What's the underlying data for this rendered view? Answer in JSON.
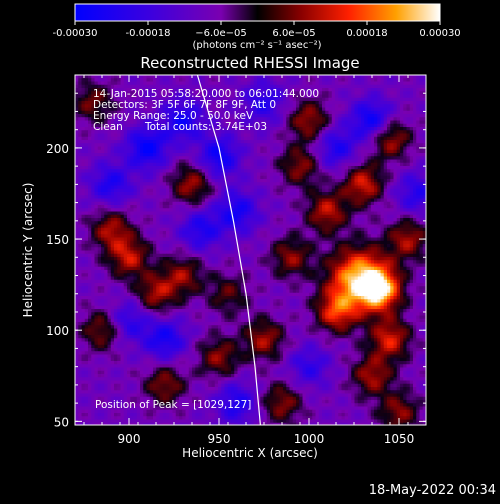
{
  "chart_data": {
    "type": "heatmap",
    "title": "Reconstructed RHESSI Image",
    "xlabel": "Heliocentric X (arcsec)",
    "ylabel": "Heliocentric Y (arcsec)",
    "xlim": [
      870,
      1065
    ],
    "ylim": [
      48,
      240
    ],
    "x_ticks": [
      "900",
      "950",
      "1000",
      "1050"
    ],
    "y_ticks": [
      "50",
      "100",
      "150",
      "200"
    ],
    "x_tick_values": [
      900,
      950,
      1000,
      1050
    ],
    "y_tick_values": [
      50,
      100,
      150,
      200
    ],
    "colorbar": {
      "range": [
        -0.0003,
        0.0003
      ],
      "tick_labels": [
        "-0.00030",
        "-0.00018",
        "−6.0e−05",
        "6.0e−05",
        "0.00018",
        "0.00030"
      ],
      "tick_values": [
        -0.0003,
        -0.00018,
        -6e-05,
        6e-05,
        0.00018,
        0.0003
      ],
      "units_label": "(photons cm⁻² s⁻¹ asec⁻²)"
    },
    "annotations": {
      "time_range": "14-Jan-2015 05:58:20.000 to 06:01:44.000",
      "detectors": "Detectors: 3F 5F 6F 7F 8F 9F, Att 0",
      "energy": "Energy Range: 25.0 - 50.0 keV",
      "method": "Clean",
      "total_counts": "Total counts: 3.74E+03",
      "peak": "Position of Peak = [1029,127]"
    },
    "peak_position": [
      1029,
      127
    ],
    "limb_curve": [
      [
        938,
        240
      ],
      [
        950,
        200
      ],
      [
        958,
        160
      ],
      [
        965,
        120
      ],
      [
        970,
        80
      ],
      [
        973,
        48
      ]
    ],
    "hotspots": [
      {
        "x": 1028,
        "y": 128,
        "level": 1.0
      },
      {
        "x": 1040,
        "y": 122,
        "level": 0.75
      },
      {
        "x": 1015,
        "y": 110,
        "level": 0.6
      },
      {
        "x": 1045,
        "y": 95,
        "level": 0.6
      },
      {
        "x": 1035,
        "y": 75,
        "level": 0.5
      },
      {
        "x": 1050,
        "y": 55,
        "level": 0.45
      },
      {
        "x": 1010,
        "y": 165,
        "level": 0.55
      },
      {
        "x": 1030,
        "y": 180,
        "level": 0.6
      },
      {
        "x": 1045,
        "y": 205,
        "level": 0.55
      },
      {
        "x": 1000,
        "y": 215,
        "level": 0.5
      },
      {
        "x": 995,
        "y": 190,
        "level": 0.45
      },
      {
        "x": 1055,
        "y": 150,
        "level": 0.5
      },
      {
        "x": 990,
        "y": 140,
        "level": 0.45
      },
      {
        "x": 975,
        "y": 95,
        "level": 0.5
      },
      {
        "x": 985,
        "y": 60,
        "level": 0.45
      },
      {
        "x": 900,
        "y": 140,
        "level": 0.55
      },
      {
        "x": 915,
        "y": 120,
        "level": 0.5
      },
      {
        "x": 930,
        "y": 130,
        "level": 0.45
      },
      {
        "x": 885,
        "y": 100,
        "level": 0.45
      },
      {
        "x": 890,
        "y": 155,
        "level": 0.5
      },
      {
        "x": 935,
        "y": 180,
        "level": 0.5
      },
      {
        "x": 920,
        "y": 70,
        "level": 0.45
      },
      {
        "x": 950,
        "y": 85,
        "level": 0.45
      },
      {
        "x": 955,
        "y": 120,
        "level": 0.35
      },
      {
        "x": 880,
        "y": 225,
        "level": 0.4
      }
    ],
    "coldspots": [
      {
        "x": 910,
        "y": 200,
        "level": -0.6
      },
      {
        "x": 930,
        "y": 215,
        "level": -0.5
      },
      {
        "x": 950,
        "y": 195,
        "level": -0.55
      },
      {
        "x": 960,
        "y": 165,
        "level": -0.5
      },
      {
        "x": 1035,
        "y": 215,
        "level": -0.6
      },
      {
        "x": 1015,
        "y": 200,
        "level": -0.45
      },
      {
        "x": 940,
        "y": 155,
        "level": -0.45
      },
      {
        "x": 900,
        "y": 105,
        "level": -0.4
      },
      {
        "x": 920,
        "y": 95,
        "level": -0.5
      },
      {
        "x": 960,
        "y": 60,
        "level": -0.45
      },
      {
        "x": 1000,
        "y": 80,
        "level": -0.35
      },
      {
        "x": 890,
        "y": 180,
        "level": -0.45
      },
      {
        "x": 975,
        "y": 225,
        "level": -0.4
      },
      {
        "x": 1060,
        "y": 175,
        "level": -0.4
      }
    ]
  },
  "timestamp": "18-May-2022 00:34"
}
